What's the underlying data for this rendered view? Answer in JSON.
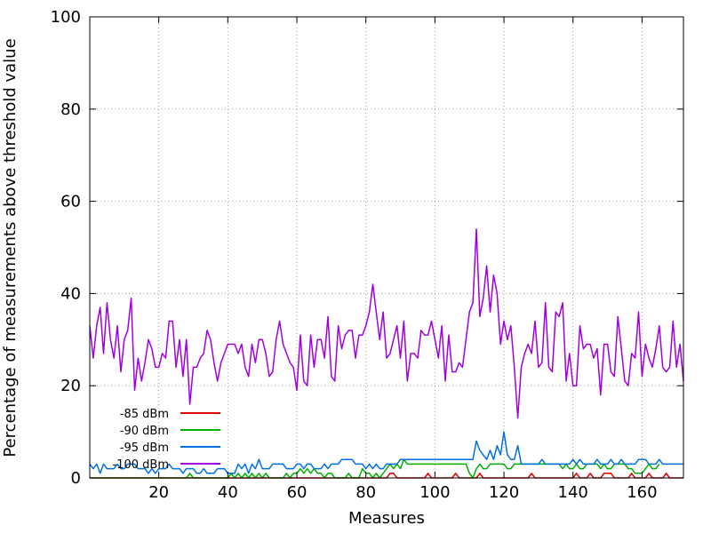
{
  "chart_data": {
    "type": "line",
    "xlabel": "Measures",
    "ylabel": "Percentage of measurements above threshold value",
    "xlim": [
      0,
      172
    ],
    "ylim": [
      0,
      100
    ],
    "x_ticks": [
      20,
      40,
      60,
      80,
      100,
      120,
      140,
      160
    ],
    "y_ticks": [
      0,
      20,
      40,
      60,
      80,
      100
    ],
    "grid": true,
    "legend_position": "bottom-left",
    "series": [
      {
        "name": "-85 dBm",
        "color": "#e00000",
        "x": [
          0,
          86,
          87,
          88,
          89,
          97,
          98,
          99,
          105,
          106,
          107,
          112,
          113,
          114,
          127,
          128,
          129,
          140,
          141,
          142,
          144,
          145,
          146,
          148,
          149,
          150,
          151,
          152,
          156,
          157,
          158,
          161,
          162,
          163,
          166,
          167,
          168,
          172
        ],
        "y": [
          0,
          0,
          1,
          1,
          0,
          0,
          1,
          0,
          0,
          1,
          0,
          0,
          1,
          0,
          0,
          1,
          0,
          0,
          1,
          0,
          0,
          1,
          0,
          0,
          1,
          1,
          1,
          0,
          0,
          1,
          0,
          0,
          1,
          0,
          0,
          1,
          0,
          0
        ]
      },
      {
        "name": "-90 dBm",
        "color": "#00b000",
        "x": [
          0,
          28,
          29,
          30,
          40,
          41,
          42,
          43,
          44,
          45,
          46,
          47,
          48,
          49,
          50,
          51,
          52,
          56,
          57,
          58,
          59,
          60,
          61,
          62,
          63,
          64,
          65,
          66,
          67,
          68,
          69,
          70,
          71,
          72,
          73,
          74,
          75,
          76,
          77,
          78,
          79,
          80,
          81,
          82,
          83,
          84,
          85,
          86,
          87,
          88,
          89,
          90,
          91,
          92,
          93,
          94,
          95,
          96,
          97,
          98,
          99,
          100,
          101,
          102,
          103,
          104,
          105,
          106,
          107,
          108,
          109,
          110,
          111,
          112,
          113,
          114,
          115,
          116,
          117,
          118,
          119,
          120,
          121,
          122,
          123,
          124,
          125,
          126,
          127,
          128,
          129,
          130,
          131,
          132,
          133,
          134,
          135,
          136,
          137,
          138,
          139,
          140,
          141,
          142,
          143,
          144,
          145,
          146,
          147,
          148,
          149,
          150,
          151,
          152,
          153,
          154,
          155,
          156,
          157,
          158,
          159,
          160,
          161,
          162,
          163,
          164,
          165
        ],
        "y": [
          0,
          0,
          1,
          0,
          0,
          1,
          0,
          1,
          0,
          1,
          0,
          1,
          0,
          1,
          0,
          1,
          0,
          0,
          1,
          0,
          1,
          1,
          2,
          1,
          2,
          1,
          2,
          1,
          1,
          0,
          1,
          1,
          0,
          0,
          0,
          0,
          1,
          0,
          0,
          0,
          2,
          1,
          1,
          0,
          1,
          0,
          1,
          2,
          3,
          2,
          3,
          2,
          4,
          3,
          3,
          3,
          3,
          3,
          3,
          3,
          3,
          3,
          3,
          3,
          3,
          3,
          3,
          3,
          3,
          3,
          3,
          1,
          0,
          2,
          3,
          2,
          2,
          3,
          3,
          3,
          3,
          3,
          2,
          2,
          3,
          3,
          3,
          3,
          3,
          3,
          3,
          3,
          3,
          3,
          3,
          3,
          3,
          3,
          2,
          3,
          2,
          2,
          3,
          2,
          2,
          3,
          3,
          3,
          3,
          2,
          3,
          2,
          2,
          3,
          3,
          3,
          3,
          2,
          2,
          1,
          1,
          1,
          2,
          3,
          2,
          2,
          3
        ]
      },
      {
        "name": "-95 dBm",
        "color": "#0070e0",
        "x": [
          0,
          1,
          2,
          3,
          4,
          5,
          6,
          7,
          8,
          9,
          10,
          11,
          12,
          13,
          14,
          15,
          16,
          17,
          18,
          19,
          20,
          21,
          22,
          23,
          24,
          25,
          26,
          27,
          28,
          29,
          30,
          31,
          32,
          33,
          34,
          35,
          36,
          37,
          38,
          39,
          40,
          41,
          42,
          43,
          44,
          45,
          46,
          47,
          48,
          49,
          50,
          51,
          52,
          53,
          54,
          55,
          56,
          57,
          58,
          59,
          60,
          61,
          62,
          63,
          64,
          65,
          66,
          67,
          68,
          69,
          70,
          71,
          72,
          73,
          74,
          75,
          76,
          77,
          78,
          79,
          80,
          81,
          82,
          83,
          84,
          85,
          86,
          87,
          88,
          89,
          90,
          91,
          92,
          93,
          94,
          95,
          96,
          97,
          98,
          99,
          100,
          101,
          102,
          103,
          104,
          105,
          106,
          107,
          108,
          109,
          110,
          111,
          112,
          113,
          114,
          115,
          116,
          117,
          118,
          119,
          120,
          121,
          122,
          123,
          124,
          125,
          126,
          127,
          128,
          129,
          130,
          131,
          132,
          133,
          134,
          135,
          136,
          137,
          138,
          139,
          140,
          141,
          142,
          143,
          144,
          145,
          146,
          147,
          148,
          149,
          150,
          151,
          152,
          153,
          154,
          155,
          156,
          157,
          158,
          159,
          160,
          161,
          162,
          163,
          164,
          165,
          166,
          167,
          168,
          169,
          170,
          171,
          172
        ],
        "y": [
          3,
          2,
          3,
          1,
          3,
          2,
          2,
          2,
          3,
          2,
          2,
          3,
          3,
          3,
          2,
          2,
          2,
          1,
          2,
          1,
          2,
          2,
          2,
          3,
          2,
          2,
          2,
          1,
          2,
          2,
          2,
          1,
          1,
          2,
          1,
          1,
          1,
          2,
          2,
          2,
          1,
          1,
          1,
          3,
          2,
          3,
          1,
          3,
          2,
          4,
          2,
          2,
          2,
          3,
          3,
          3,
          3,
          2,
          2,
          2,
          3,
          3,
          2,
          3,
          3,
          2,
          2,
          2,
          3,
          2,
          3,
          3,
          3,
          4,
          4,
          4,
          4,
          3,
          3,
          3,
          2,
          3,
          2,
          3,
          2,
          2,
          3,
          3,
          3,
          3,
          4,
          4,
          4,
          4,
          4,
          4,
          4,
          4,
          4,
          4,
          4,
          4,
          4,
          4,
          4,
          4,
          4,
          4,
          4,
          4,
          4,
          4,
          8,
          6,
          5,
          4,
          6,
          4,
          7,
          5,
          10,
          5,
          4,
          4,
          7,
          3,
          3,
          3,
          3,
          3,
          3,
          4,
          3,
          3,
          3,
          3,
          3,
          3,
          3,
          3,
          4,
          3,
          4,
          3,
          3,
          3,
          3,
          4,
          3,
          3,
          3,
          4,
          3,
          3,
          4,
          3,
          3,
          3,
          3,
          4,
          4,
          4,
          3,
          3,
          3,
          4,
          3,
          3,
          3,
          3,
          3,
          3,
          3
        ]
      },
      {
        "name": "-100 dBm",
        "color": "#a000e0",
        "x": [
          0,
          1,
          2,
          3,
          4,
          5,
          6,
          7,
          8,
          9,
          10,
          11,
          12,
          13,
          14,
          15,
          16,
          17,
          18,
          19,
          20,
          21,
          22,
          23,
          24,
          25,
          26,
          27,
          28,
          29,
          30,
          31,
          32,
          33,
          34,
          35,
          36,
          37,
          38,
          39,
          40,
          41,
          42,
          43,
          44,
          45,
          46,
          47,
          48,
          49,
          50,
          51,
          52,
          53,
          54,
          55,
          56,
          57,
          58,
          59,
          60,
          61,
          62,
          63,
          64,
          65,
          66,
          67,
          68,
          69,
          70,
          71,
          72,
          73,
          74,
          75,
          76,
          77,
          78,
          79,
          80,
          81,
          82,
          83,
          84,
          85,
          86,
          87,
          88,
          89,
          90,
          91,
          92,
          93,
          94,
          95,
          96,
          97,
          98,
          99,
          100,
          101,
          102,
          103,
          104,
          105,
          106,
          107,
          108,
          109,
          110,
          111,
          112,
          113,
          114,
          115,
          116,
          117,
          118,
          119,
          120,
          121,
          122,
          123,
          124,
          125,
          126,
          127,
          128,
          129,
          130,
          131,
          132,
          133,
          134,
          135,
          136,
          137,
          138,
          139,
          140,
          141,
          142,
          143,
          144,
          145,
          146,
          147,
          148,
          149,
          150,
          151,
          152,
          153,
          154,
          155,
          156,
          157,
          158,
          159,
          160,
          161,
          162,
          163,
          164,
          165,
          166,
          167,
          168,
          169,
          170,
          171,
          172
        ],
        "y": [
          33,
          26,
          33,
          37,
          27,
          38,
          30,
          26,
          33,
          23,
          30,
          32,
          39,
          19,
          26,
          21,
          25,
          30,
          28,
          24,
          24,
          27,
          26,
          34,
          34,
          24,
          30,
          22,
          30,
          16,
          24,
          24,
          26,
          27,
          32,
          30,
          25,
          21,
          25,
          27,
          29,
          29,
          29,
          27,
          29,
          24,
          22,
          29,
          25,
          30,
          30,
          27,
          22,
          23,
          30,
          34,
          29,
          27,
          25,
          24,
          19,
          31,
          21,
          20,
          31,
          24,
          30,
          30,
          26,
          35,
          22,
          21,
          33,
          28,
          31,
          32,
          32,
          26,
          31,
          31,
          33,
          36,
          42,
          36,
          30,
          36,
          26,
          27,
          30,
          33,
          26,
          34,
          21,
          27,
          27,
          26,
          32,
          31,
          31,
          34,
          30,
          26,
          33,
          21,
          31,
          23,
          23,
          25,
          24,
          30,
          36,
          38,
          54,
          35,
          39,
          46,
          36,
          44,
          40,
          29,
          34,
          30,
          33,
          24,
          13,
          24,
          27,
          29,
          27,
          34,
          24,
          25,
          38,
          24,
          23,
          36,
          35,
          38,
          21,
          27,
          20,
          20,
          33,
          28,
          29,
          29,
          26,
          28,
          18,
          29,
          29,
          23,
          22,
          35,
          28,
          21,
          20,
          27,
          26,
          36,
          22,
          29,
          26,
          24,
          28,
          33,
          24,
          23,
          24,
          34,
          24,
          29,
          21
        ]
      }
    ]
  }
}
